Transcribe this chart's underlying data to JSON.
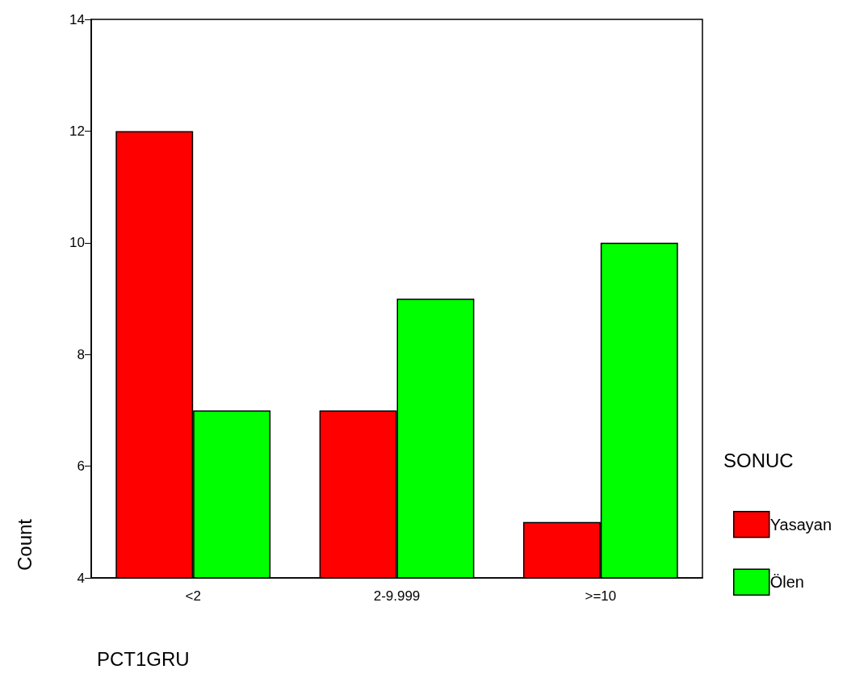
{
  "chart_data": {
    "type": "bar",
    "xlabel": "PCT1GRU",
    "ylabel": "Count",
    "legend_title": "SONUC",
    "legend": "right",
    "categories": [
      "<2",
      "2-9.999",
      ">=10"
    ],
    "series": [
      {
        "name": "Yasayan",
        "color": "#ff0000",
        "values": [
          12,
          7,
          5
        ]
      },
      {
        "name": "Ölen",
        "color": "#00ff00",
        "values": [
          7,
          9,
          10
        ]
      }
    ],
    "ylim": [
      4,
      14
    ],
    "yticks": [
      4,
      6,
      8,
      10,
      12,
      14
    ],
    "grid": false
  }
}
